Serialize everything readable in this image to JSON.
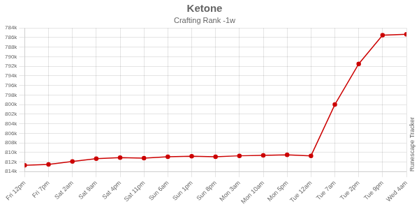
{
  "chart_data": {
    "type": "line",
    "title": "Ketone",
    "subtitle": "Crafting Rank -1w",
    "annotations": [
      "Runescape Tracker"
    ],
    "categories": [
      "Fri 12pm",
      "Fri 7pm",
      "Sat 2am",
      "Sat 9am",
      "Sat 4pm",
      "Sat 11pm",
      "Sun 6am",
      "Sun 1pm",
      "Sun 8pm",
      "Mon 3am",
      "Mon 10am",
      "Mon 5pm",
      "Tue 12am",
      "Tue 7am",
      "Tue 2pm",
      "Tue 9pm",
      "Wed 4am"
    ],
    "values": [
      812700,
      812500,
      811900,
      811300,
      811100,
      811200,
      810900,
      810800,
      810900,
      810700,
      810600,
      810500,
      810700,
      800000,
      791500,
      785500,
      785300
    ],
    "color": "#cc0000",
    "marker": "circle",
    "ylim": [
      814000,
      784000
    ],
    "yticks": [
      {
        "value": 784000,
        "label": "784k"
      },
      {
        "value": 786000,
        "label": "786k"
      },
      {
        "value": 788000,
        "label": "788k"
      },
      {
        "value": 790000,
        "label": "790k"
      },
      {
        "value": 792000,
        "label": "792k"
      },
      {
        "value": 794000,
        "label": "794k"
      },
      {
        "value": 796000,
        "label": "796k"
      },
      {
        "value": 798000,
        "label": "798k"
      },
      {
        "value": 800000,
        "label": "800k"
      },
      {
        "value": 802000,
        "label": "802k"
      },
      {
        "value": 804000,
        "label": "804k"
      },
      {
        "value": 806000,
        "label": "806k"
      },
      {
        "value": 808000,
        "label": "808k"
      },
      {
        "value": 810000,
        "label": "810k"
      },
      {
        "value": 812000,
        "label": "812k"
      },
      {
        "value": 814000,
        "label": "814k"
      }
    ],
    "grid": true
  }
}
